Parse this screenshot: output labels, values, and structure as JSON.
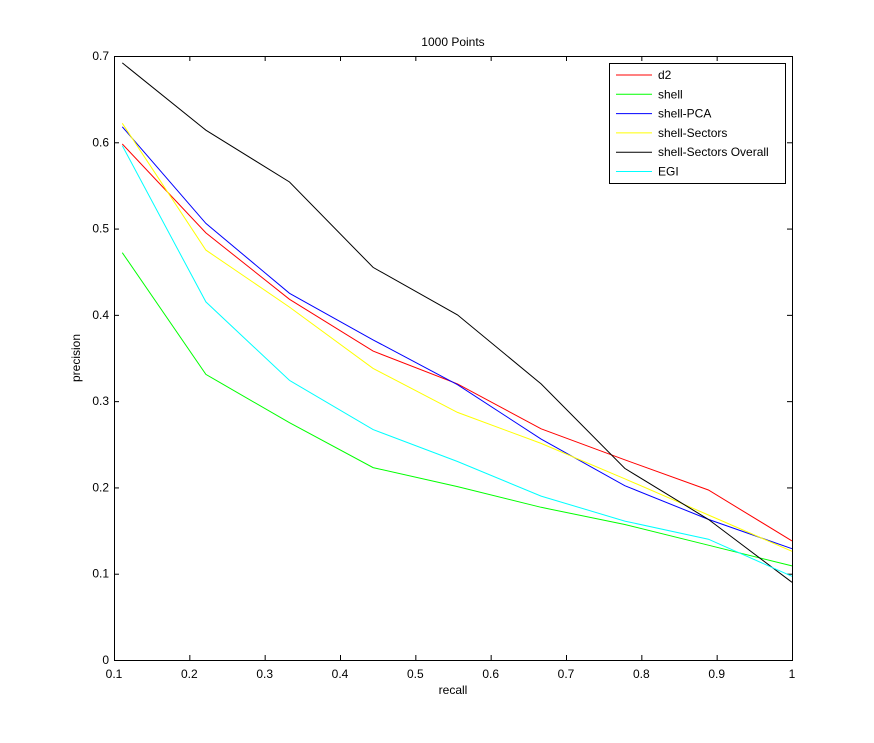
{
  "chart_data": {
    "type": "line",
    "title": "1000 Points",
    "xlabel": "recall",
    "ylabel": "precision",
    "xlim": [
      0.1,
      1
    ],
    "ylim": [
      0,
      0.7
    ],
    "xticks": [
      "0.1",
      "0.2",
      "0.3",
      "0.4",
      "0.5",
      "0.6",
      "0.7",
      "0.8",
      "0.9",
      "1"
    ],
    "yticks": [
      "0",
      "0.1",
      "0.2",
      "0.3",
      "0.4",
      "0.5",
      "0.6",
      "0.7"
    ],
    "x": [
      0.111,
      0.222,
      0.333,
      0.444,
      0.556,
      0.667,
      0.778,
      0.889,
      1.0
    ],
    "grid": false,
    "legend_position": "top-right",
    "series": [
      {
        "name": "d2",
        "color": "#ff0000",
        "values": [
          0.598,
          0.495,
          0.418,
          0.358,
          0.32,
          0.268,
          0.232,
          0.197,
          0.138
        ]
      },
      {
        "name": "shell",
        "color": "#00ff00",
        "values": [
          0.472,
          0.331,
          0.275,
          0.223,
          0.201,
          0.177,
          0.157,
          0.133,
          0.109
        ]
      },
      {
        "name": "shell-PCA",
        "color": "#0000ff",
        "values": [
          0.618,
          0.506,
          0.425,
          0.371,
          0.319,
          0.256,
          0.202,
          0.163,
          0.129
        ]
      },
      {
        "name": "shell-Sectors",
        "color": "#ffff00",
        "values": [
          0.622,
          0.475,
          0.409,
          0.338,
          0.287,
          0.251,
          0.21,
          0.168,
          0.126
        ]
      },
      {
        "name": "shell-Sectors Overall",
        "color": "#000000",
        "values": [
          0.692,
          0.614,
          0.554,
          0.455,
          0.4,
          0.32,
          0.222,
          0.163,
          0.09
        ]
      },
      {
        "name": "EGI",
        "color": "#00ffff",
        "values": [
          0.596,
          0.415,
          0.324,
          0.267,
          0.23,
          0.19,
          0.161,
          0.14,
          0.097
        ]
      }
    ]
  }
}
